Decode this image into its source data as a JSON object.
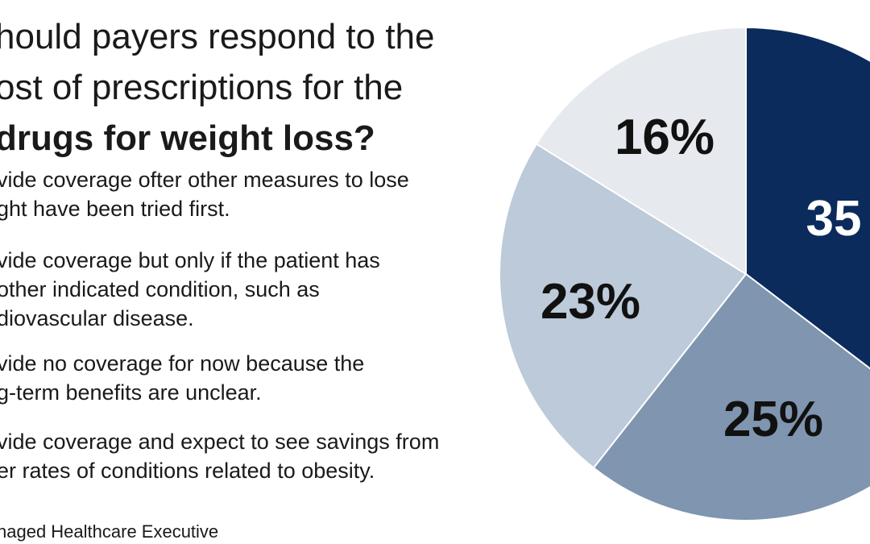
{
  "title": {
    "line1": "hould payers respond to the",
    "line2": "ost of prescriptions for the",
    "line3": "drugs for weight loss?"
  },
  "options": [
    {
      "lines": [
        "vide coverage ofter other measures to lose",
        "ght have been tried first."
      ]
    },
    {
      "lines": [
        "vide coverage but only if the patient has",
        "other indicated condition, such as",
        "diovascular disease."
      ]
    },
    {
      "lines": [
        "vide no coverage for now because the",
        "g-term benefits are unclear."
      ]
    },
    {
      "lines": [
        "vide coverage and expect to see savings from",
        "er rates of conditions related to obesity."
      ]
    }
  ],
  "source": "naged Healthcare Executive",
  "chart_data": {
    "type": "pie",
    "values": [
      35,
      25,
      23,
      16
    ],
    "labels": [
      "35",
      "25%",
      "23%",
      "16%"
    ],
    "colors": [
      "#0b2b5c",
      "#7f95b0",
      "#bccad9",
      "#e6e9ee"
    ],
    "label_colors": [
      "#ffffff",
      "#111111",
      "#111111",
      "#111111"
    ]
  }
}
